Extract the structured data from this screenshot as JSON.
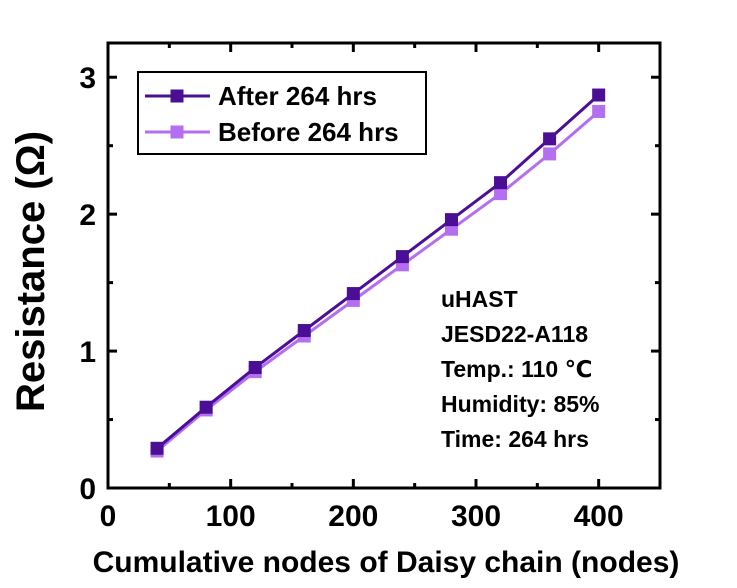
{
  "chart_data": {
    "type": "line",
    "xlabel": "Cumulative nodes of Daisy chain (nodes)",
    "ylabel": "Resistance (Ω)",
    "xlim": [
      0,
      450
    ],
    "ylim": [
      0,
      3.25
    ],
    "x_ticks": [
      0,
      100,
      200,
      300,
      400
    ],
    "y_ticks": [
      0,
      1,
      2,
      3
    ],
    "x_tick_labels": [
      "0",
      "100",
      "200",
      "300",
      "400"
    ],
    "y_tick_labels": [
      "0",
      "1",
      "2",
      "3"
    ],
    "x": [
      40,
      80,
      120,
      160,
      200,
      240,
      280,
      320,
      360,
      400
    ],
    "series": [
      {
        "name": "After 264 hrs",
        "color": "#4b0f96",
        "marker": "square",
        "values": [
          0.29,
          0.59,
          0.88,
          1.15,
          1.42,
          1.69,
          1.96,
          2.23,
          2.55,
          2.87
        ]
      },
      {
        "name": "Before 264 hrs",
        "color": "#b46ef0",
        "marker": "square",
        "values": [
          0.27,
          0.57,
          0.85,
          1.11,
          1.37,
          1.63,
          1.89,
          2.15,
          2.44,
          2.75
        ]
      }
    ],
    "legend_position": "top-left",
    "grid": false,
    "annotations": [
      "uHAST",
      "JESD22-A118",
      "Temp.: 110 ℃",
      "Humidity: 85%",
      "Time: 264 hrs"
    ]
  }
}
